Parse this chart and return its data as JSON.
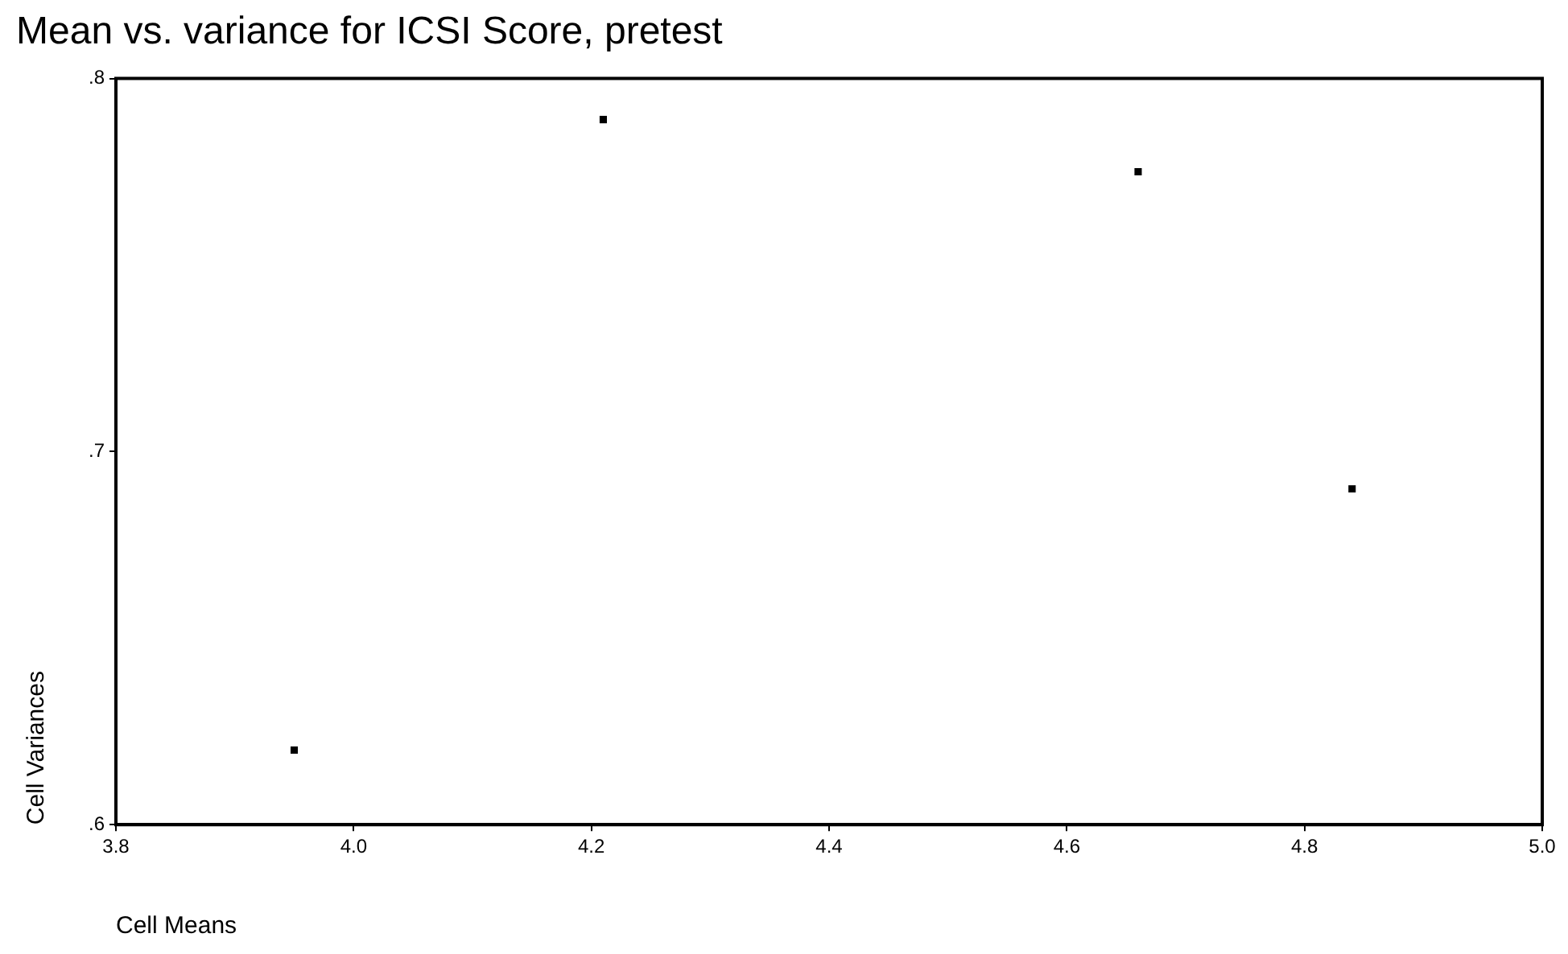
{
  "chart_data": {
    "type": "scatter",
    "title": "Mean vs. variance for ICSI Score, pretest",
    "xlabel": "Cell Means",
    "ylabel": "Cell Variances",
    "series": [
      {
        "color": "#000000",
        "x": [
          3.95,
          4.21,
          4.66,
          4.84
        ],
        "values": [
          0.62,
          0.789,
          0.775,
          0.69
        ]
      }
    ],
    "xlim": [
      3.8,
      5.0
    ],
    "xticks": [
      {
        "value": 3.8,
        "label": "3.8"
      },
      {
        "value": 4.0,
        "label": "4.0"
      },
      {
        "value": 4.2,
        "label": "4.2"
      },
      {
        "value": 4.4,
        "label": "4.4"
      },
      {
        "value": 4.6,
        "label": "4.6"
      },
      {
        "value": 4.8,
        "label": "4.8"
      },
      {
        "value": 5.0,
        "label": "5.0"
      }
    ],
    "ylim": [
      0.6,
      0.8
    ],
    "yticks": [
      {
        "value": 0.6,
        "label": ".6"
      },
      {
        "value": 0.7,
        "label": ".7"
      },
      {
        "value": 0.8,
        "label": ".8"
      }
    ],
    "grid": false,
    "legend": false,
    "marker": "square"
  }
}
